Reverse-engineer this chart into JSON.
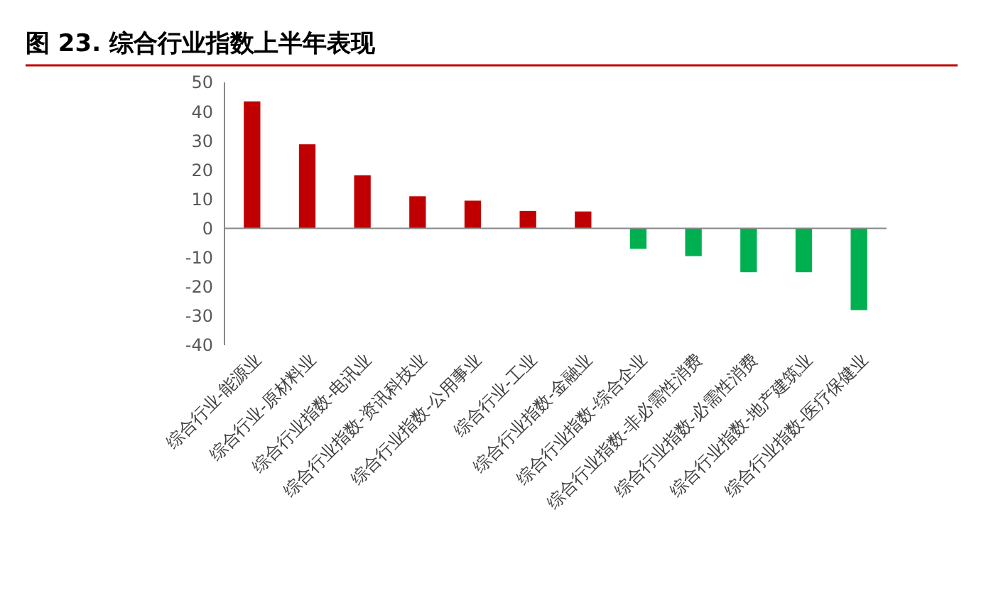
{
  "chart_data": {
    "type": "bar",
    "title": "图 23. 综合行业指数上半年表现",
    "categories": [
      "综合行业-能源业",
      "综合行业-原材料业",
      "综合行业指数-电讯业",
      "综合行业指数-资讯科技业",
      "综合行业指数-公用事业",
      "综合行业-工业",
      "综合行业指数-金融业",
      "综合行业指数-综合企业",
      "综合行业指数-非必需性消费",
      "综合行业指数-必需性消费",
      "综合行业指数-地产建筑业",
      "综合行业指数-医疗保健业"
    ],
    "values": [
      43.5,
      28.8,
      18.2,
      11,
      9.5,
      6,
      5.8,
      -7,
      -9.5,
      -15,
      -15,
      -28
    ],
    "colors": [
      "#c00000",
      "#c00000",
      "#c00000",
      "#c00000",
      "#c00000",
      "#c00000",
      "#c00000",
      "#00b050",
      "#00b050",
      "#00b050",
      "#00b050",
      "#00b050"
    ],
    "ylim": [
      -40,
      50
    ],
    "yticks": [
      -40,
      -30,
      -20,
      -10,
      0,
      10,
      20,
      30,
      40,
      50
    ]
  }
}
